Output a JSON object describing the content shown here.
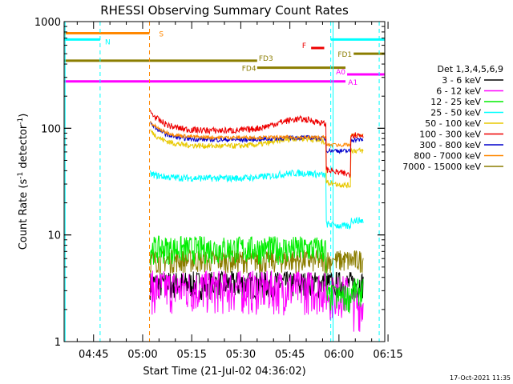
{
  "chart_data": {
    "type": "line",
    "title": "RHESSI Observing Summary Count Rates",
    "xlabel": "Start Time (21-Jul-02 04:36:02)",
    "ylabel_main": "Count Rate (s",
    "ylabel_sup1": "-1",
    "ylabel_mid": " detector",
    "ylabel_sup2": "-1",
    "ylabel_end": ")",
    "yscale": "log",
    "ylim": [
      1,
      1000
    ],
    "xlim_minutes": [
      276,
      374
    ],
    "x_ticks": [
      {
        "label": "04:45",
        "t": 285
      },
      {
        "label": "05:00",
        "t": 300
      },
      {
        "label": "05:15",
        "t": 315
      },
      {
        "label": "05:30",
        "t": 330
      },
      {
        "label": "05:45",
        "t": 345
      },
      {
        "label": "06:00",
        "t": 360
      },
      {
        "label": "06:15",
        "t": 375
      }
    ],
    "y_ticks": [
      {
        "label": "1",
        "v": 1
      },
      {
        "label": "10",
        "v": 10
      },
      {
        "label": "100",
        "v": 100
      },
      {
        "label": "1000",
        "v": 1000
      }
    ],
    "legend_title": "Det 1,3,4,5,6,9",
    "legend_position": "right",
    "series": [
      {
        "name": "3 - 6 keV",
        "color": "#000000"
      },
      {
        "name": "6 - 12 keV",
        "color": "#ff00ff"
      },
      {
        "name": "12 - 25 keV",
        "color": "#00ee00"
      },
      {
        "name": "25 - 50 keV",
        "color": "#00ffff"
      },
      {
        "name": "50 - 100 keV",
        "color": "#e8c800"
      },
      {
        "name": "100 - 300 keV",
        "color": "#ee0000"
      },
      {
        "name": "300 - 800 keV",
        "color": "#0000cc"
      },
      {
        "name": "800 - 7000 keV",
        "color": "#ff8800"
      },
      {
        "name": "7000 - 15000 keV",
        "color": "#8b7d00"
      }
    ],
    "flags": [
      {
        "label": "S",
        "color": "#ff8800",
        "y": 779
      },
      {
        "label": "N",
        "color": "#00ffff",
        "y": 680
      },
      {
        "label": "F",
        "color": "#ee0000",
        "y": 565
      },
      {
        "label": "FD1",
        "color": "#8b7d00",
        "y": 500
      },
      {
        "label": "FD3",
        "color": "#8b7d00",
        "y": 430
      },
      {
        "label": "FD4",
        "color": "#8b7d00",
        "y": 370
      },
      {
        "label": "A0",
        "color": "#ff00ff",
        "y": 320
      },
      {
        "label": "A1",
        "color": "#ff00ff",
        "y": 275
      }
    ]
  },
  "footer": {
    "date": "17-Oct-2021 11:35"
  }
}
